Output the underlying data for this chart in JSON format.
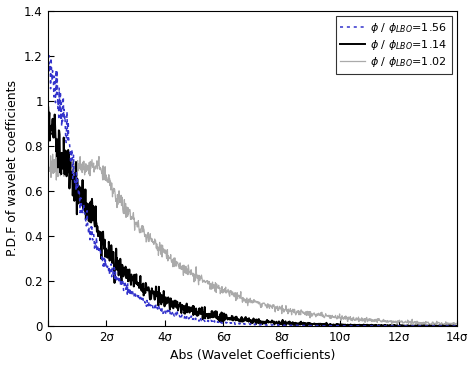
{
  "title": "",
  "xlabel": "Abs (Wavelet Coefficients)",
  "ylabel": "P.D.F of wavelet coefficients",
  "xlim": [
    0,
    14
  ],
  "ylim": [
    0,
    1.4
  ],
  "xticks": [
    0,
    2,
    4,
    6,
    8,
    10,
    12,
    14
  ],
  "xtick_labels": [
    "0",
    "2σ",
    "4σ",
    "6σ",
    "8σ",
    "10σ",
    "12σ",
    "14σ"
  ],
  "yticks": [
    0,
    0.2,
    0.4,
    0.6,
    0.8,
    1.0,
    1.2,
    1.4
  ],
  "ytick_labels": [
    "0",
    "0.2",
    "0.4",
    "0.6",
    "0.8",
    "1",
    "1.2",
    "1.4"
  ],
  "legend_labels": [
    "$\\phi$ / $\\phi_{LBO}$=1.56",
    "$\\phi$ / $\\phi_{LBO}$=1.14",
    "$\\phi$ / $\\phi_{LBO}$=1.02"
  ],
  "line_colors": [
    "#3333cc",
    "#000000",
    "#aaaaaa"
  ],
  "background_color": "#ffffff",
  "figsize": [
    4.74,
    3.68
  ],
  "dpi": 100
}
